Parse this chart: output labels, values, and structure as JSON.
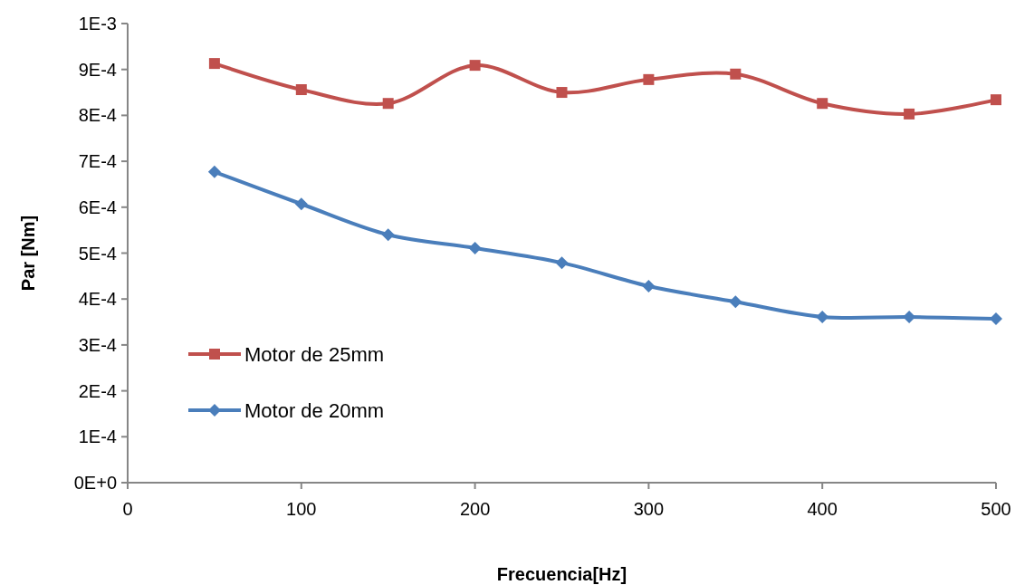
{
  "chart_data": {
    "type": "line",
    "xlabel": "Frecuencia[Hz]",
    "ylabel": "Par [Nm]",
    "x": [
      50,
      100,
      150,
      200,
      250,
      300,
      350,
      400,
      450,
      500
    ],
    "series": [
      {
        "name": "Motor de 25mm",
        "color": "#c0504d",
        "marker": "square",
        "values": [
          0.000913,
          0.000856,
          0.000826,
          0.000909,
          0.00085,
          0.000878,
          0.00089,
          0.000826,
          0.000803,
          0.000834
        ]
      },
      {
        "name": "Motor de 20mm",
        "color": "#4a7ebb",
        "marker": "diamond",
        "values": [
          0.000677,
          0.000607,
          0.00054,
          0.000511,
          0.000479,
          0.000428,
          0.000394,
          0.000361,
          0.000361,
          0.000357
        ]
      }
    ],
    "xlim": [
      0,
      500
    ],
    "xticks": [
      0,
      100,
      200,
      300,
      400,
      500
    ],
    "ylim": [
      0,
      0.001
    ],
    "yticks": [
      {
        "value": 0,
        "label": "0E+0"
      },
      {
        "value": 0.0001,
        "label": "1E-4"
      },
      {
        "value": 0.0002,
        "label": "2E-4"
      },
      {
        "value": 0.0003,
        "label": "3E-4"
      },
      {
        "value": 0.0004,
        "label": "4E-4"
      },
      {
        "value": 0.0005,
        "label": "5E-4"
      },
      {
        "value": 0.0006,
        "label": "6E-4"
      },
      {
        "value": 0.0007,
        "label": "7E-4"
      },
      {
        "value": 0.0008,
        "label": "8E-4"
      },
      {
        "value": 0.0009,
        "label": "9E-4"
      },
      {
        "value": 0.001,
        "label": "1E-3"
      }
    ],
    "grid": false,
    "legend": "left"
  }
}
